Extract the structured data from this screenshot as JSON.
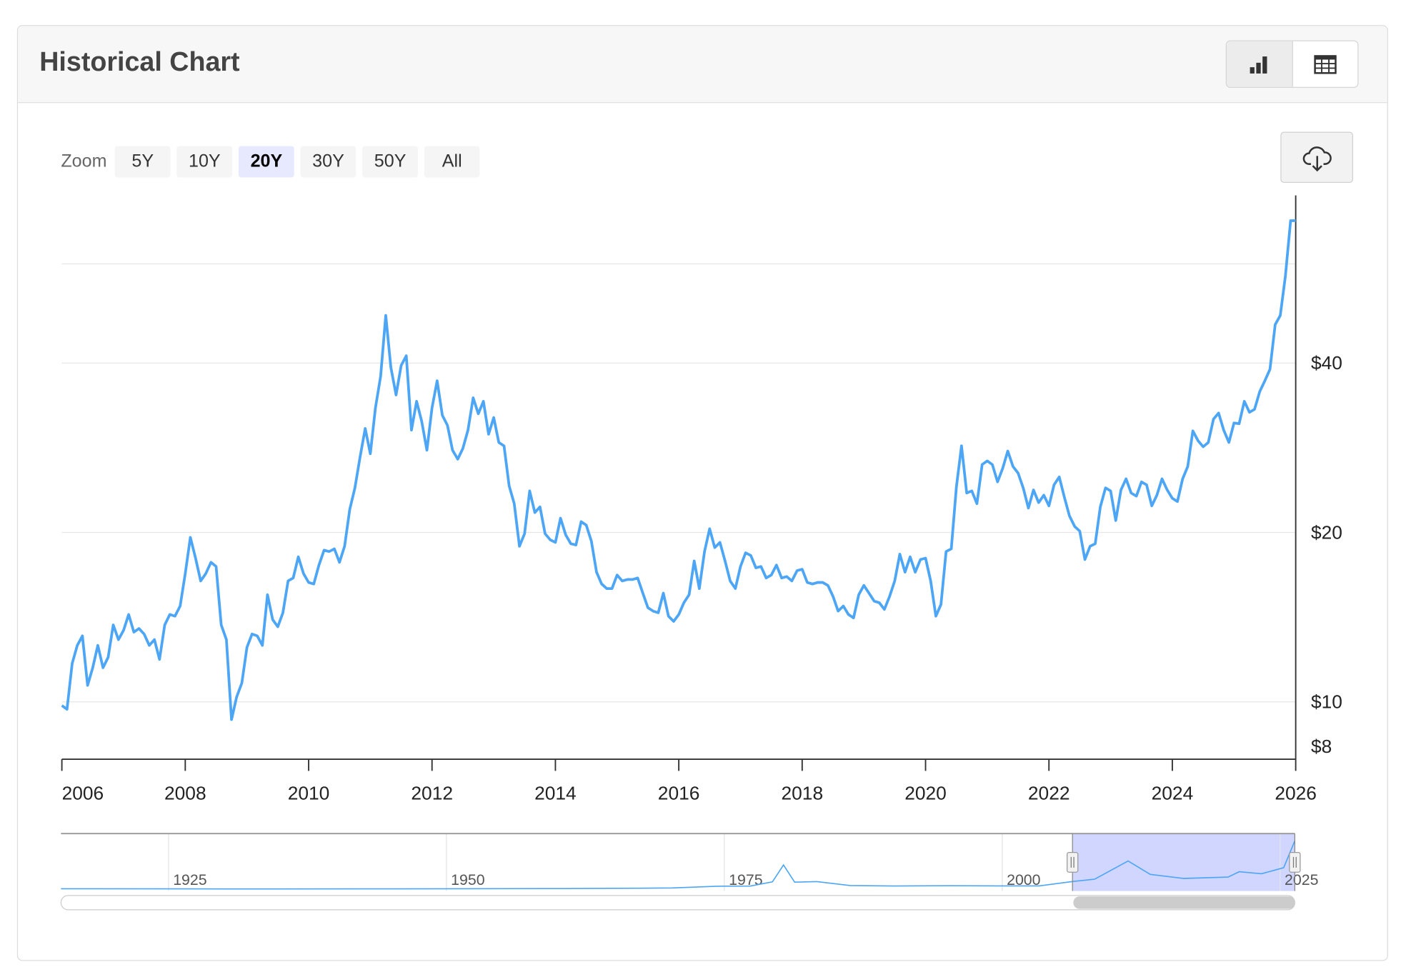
{
  "header": {
    "title": "Historical Chart",
    "view_buttons": [
      {
        "icon": "bar-chart-icon",
        "active": true
      },
      {
        "icon": "table-icon",
        "active": false
      }
    ]
  },
  "zoom": {
    "label": "Zoom",
    "options": [
      "5Y",
      "10Y",
      "20Y",
      "30Y",
      "50Y",
      "All"
    ],
    "selected": "20Y"
  },
  "download": {
    "icon": "cloud-download-icon"
  },
  "colors": {
    "line": "#4da6f5",
    "navigator_mask": "#d0d6ff",
    "grid": "#e6e6e6"
  },
  "chart_data": {
    "type": "line",
    "title": "",
    "xlabel": "",
    "ylabel": "",
    "x_range": [
      2006,
      2026
    ],
    "x_ticks": [
      "2006",
      "2008",
      "2010",
      "2012",
      "2014",
      "2016",
      "2018",
      "2020",
      "2022",
      "2024",
      "2026"
    ],
    "y_scale": "log",
    "y_range": [
      8,
      80
    ],
    "y_ticks": [
      {
        "value": 8,
        "label": "$8"
      },
      {
        "value": 10,
        "label": "$10"
      },
      {
        "value": 20,
        "label": "$20"
      },
      {
        "value": 40,
        "label": "$40"
      }
    ],
    "y_gridlines": [
      10,
      20,
      40,
      60
    ],
    "y_axis_side": "right",
    "grid": true,
    "series": [
      {
        "frequency": "monthly",
        "values": [
          9.85,
          9.7,
          11.7,
          12.6,
          13.1,
          10.7,
          11.5,
          12.6,
          11.5,
          12.0,
          13.7,
          12.9,
          13.4,
          14.3,
          13.3,
          13.5,
          13.2,
          12.6,
          12.9,
          11.9,
          13.7,
          14.3,
          14.2,
          14.8,
          16.9,
          19.6,
          18.0,
          16.4,
          16.9,
          17.7,
          17.4,
          13.7,
          12.9,
          9.3,
          10.2,
          10.8,
          12.5,
          13.2,
          13.1,
          12.6,
          15.5,
          14.0,
          13.6,
          14.4,
          16.4,
          16.6,
          18.1,
          16.9,
          16.3,
          16.2,
          17.5,
          18.6,
          18.5,
          18.7,
          17.7,
          18.9,
          22.0,
          24.0,
          27.2,
          30.6,
          27.6,
          33.3,
          37.9,
          48.6,
          39.3,
          35.1,
          39.6,
          41.2,
          30.4,
          34.2,
          31.5,
          28.0,
          33.3,
          37.2,
          32.3,
          31.0,
          28.0,
          27.0,
          28.2,
          30.4,
          34.7,
          32.5,
          34.2,
          29.9,
          32.0,
          28.9,
          28.5,
          24.2,
          22.5,
          18.9,
          19.9,
          23.7,
          21.7,
          22.2,
          19.9,
          19.4,
          19.2,
          21.2,
          19.8,
          19.1,
          19.0,
          20.9,
          20.6,
          19.3,
          17.0,
          16.2,
          15.9,
          15.9,
          16.8,
          16.4,
          16.5,
          16.5,
          16.6,
          15.6,
          14.7,
          14.5,
          14.4,
          15.6,
          14.2,
          13.9,
          14.3,
          15.0,
          15.5,
          17.8,
          15.9,
          18.5,
          20.3,
          18.8,
          19.2,
          17.8,
          16.4,
          15.9,
          17.4,
          18.4,
          18.2,
          17.3,
          17.4,
          16.6,
          16.8,
          17.5,
          16.6,
          16.7,
          16.4,
          17.1,
          17.2,
          16.3,
          16.2,
          16.3,
          16.3,
          16.1,
          15.4,
          14.5,
          14.8,
          14.3,
          14.1,
          15.5,
          16.1,
          15.6,
          15.1,
          15.0,
          14.6,
          15.4,
          16.4,
          18.3,
          17.0,
          18.1,
          17.0,
          17.9,
          18.0,
          16.4,
          14.2,
          14.9,
          18.5,
          18.7,
          24.1,
          28.5,
          23.5,
          23.7,
          22.5,
          26.4,
          26.8,
          26.4,
          24.6,
          26.0,
          27.9,
          26.2,
          25.5,
          24.0,
          22.1,
          23.8,
          22.6,
          23.3,
          22.3,
          24.3,
          25.1,
          23.1,
          21.4,
          20.5,
          20.1,
          17.9,
          18.9,
          19.1,
          22.2,
          24.0,
          23.7,
          21.0,
          23.8,
          24.9,
          23.5,
          23.2,
          24.6,
          24.3,
          22.3,
          23.3,
          24.9,
          23.8,
          23.0,
          22.7,
          24.9,
          26.2,
          30.3,
          29.1,
          28.4,
          28.9,
          31.8,
          32.6,
          30.4,
          28.9,
          31.3,
          31.2,
          34.2,
          32.7,
          33.1,
          35.6,
          37.2,
          39.0,
          46.8,
          48.6,
          57.1,
          71.6,
          71.6
        ]
      }
    ],
    "navigator": {
      "x_ticks": [
        "1925",
        "1950",
        "1975",
        "2000",
        "2025"
      ],
      "x_range": [
        1915,
        2026
      ],
      "selected_range": [
        2006,
        2026
      ],
      "series": {
        "years": [
          1915,
          1930,
          1945,
          1960,
          1967,
          1970,
          1974,
          1977,
          1979,
          1980,
          1981,
          1983,
          1986,
          1990,
          1995,
          2000,
          2003,
          2006,
          2008,
          2011,
          2013,
          2016,
          2020,
          2021,
          2023,
          2025,
          2026
        ],
        "values": [
          0.6,
          0.4,
          0.5,
          0.9,
          1.5,
          1.8,
          4.4,
          4.6,
          11,
          36,
          10.5,
          11.4,
          5.5,
          4.8,
          5.2,
          5,
          4.9,
          11.5,
          15,
          42,
          22,
          16,
          18,
          26,
          23,
          32,
          72
        ]
      }
    }
  }
}
